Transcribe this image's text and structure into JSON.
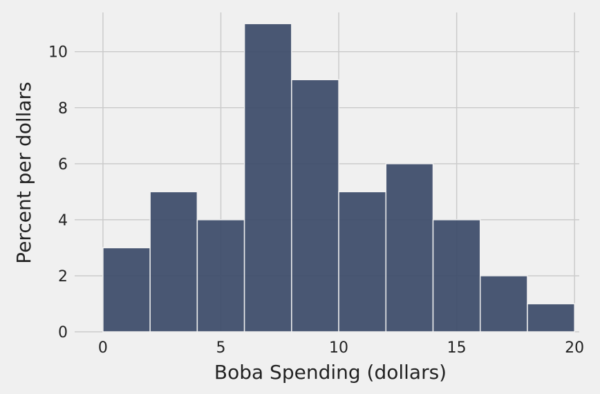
{
  "chart_data": {
    "type": "histogram",
    "title": "",
    "xlabel": "Boba Spending (dollars)",
    "ylabel": "Percent per dollars",
    "bins": [
      {
        "start": 0,
        "end": 2,
        "value": 3
      },
      {
        "start": 2,
        "end": 4,
        "value": 5
      },
      {
        "start": 4,
        "end": 6,
        "value": 4
      },
      {
        "start": 6,
        "end": 8,
        "value": 11
      },
      {
        "start": 8,
        "end": 10,
        "value": 9
      },
      {
        "start": 10,
        "end": 12,
        "value": 5
      },
      {
        "start": 12,
        "end": 14,
        "value": 6
      },
      {
        "start": 14,
        "end": 16,
        "value": 4
      },
      {
        "start": 16,
        "end": 18,
        "value": 2
      },
      {
        "start": 18,
        "end": 20,
        "value": 1
      }
    ],
    "xlim": [
      -1.2,
      20.2
    ],
    "ylim": [
      0,
      11.4
    ],
    "xticks": [
      0,
      5,
      10,
      15,
      20
    ],
    "yticks": [
      0,
      2,
      4,
      6,
      8,
      10
    ],
    "grid": true,
    "bar_color": "#3b4a68",
    "background_color": "#f0f0f0",
    "grid_color": "#cbcbcb"
  }
}
